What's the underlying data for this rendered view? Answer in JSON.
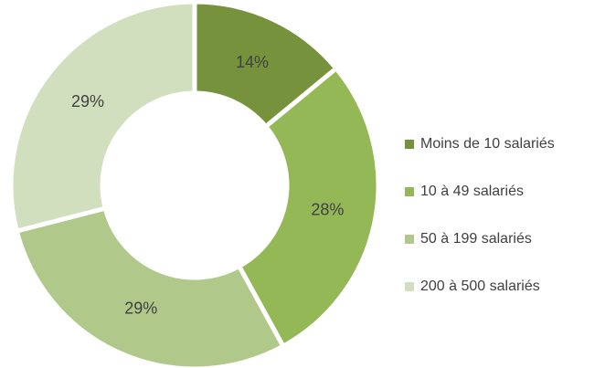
{
  "chart_data": {
    "type": "donut",
    "categories": [
      "Moins de 10 salariés",
      "10 à 49 salariés",
      "50 à 199 salariés",
      "200 à 500 salariés"
    ],
    "values": [
      14,
      28,
      29,
      29
    ],
    "value_labels": [
      "14%",
      "28%",
      "29%",
      "29%"
    ],
    "colors": [
      "#76923c",
      "#94b856",
      "#b0c98a",
      "#d2dfbe"
    ],
    "legend": "right"
  }
}
